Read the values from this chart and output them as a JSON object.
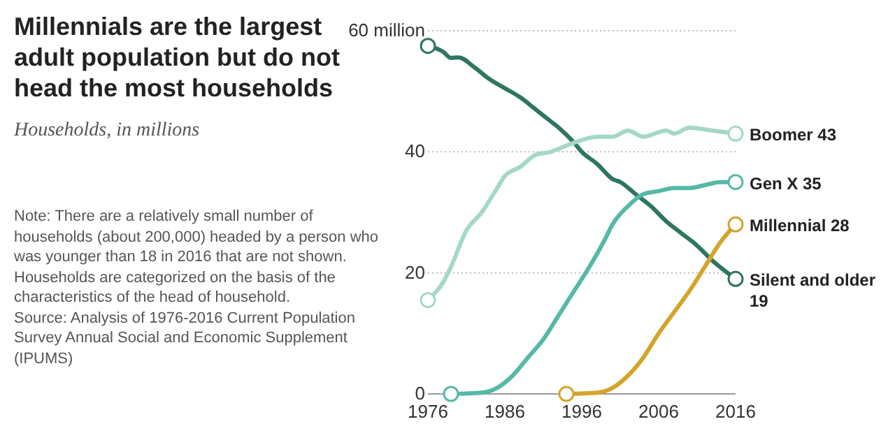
{
  "chart_data": {
    "type": "line",
    "title": "Millennials are the largest adult population but do not head the most households",
    "subtitle": "Households, in millions",
    "annotations": [
      "Note: There are a relatively small number of households (about 200,000) headed by a person who was younger than 18 in 2016 that are not shown. Households are categorized on the basis of the characteristics of the head of household.",
      "Source: Analysis of 1976-2016 Current Population Survey Annual Social and Economic Supplement (IPUMS)"
    ],
    "xlim": [
      1976,
      2016
    ],
    "xticks": [
      1976,
      1986,
      1996,
      2006,
      2016
    ],
    "ylim": [
      0,
      60
    ],
    "yticks": [
      0,
      20,
      40,
      {
        "value": 60,
        "label": "60 million"
      }
    ],
    "grid": "y",
    "legend": false,
    "line_style": "solid",
    "series": [
      {
        "name": "Silent and older",
        "color": "#2e7562",
        "x": [
          1976,
          1978,
          1979,
          1980,
          1982,
          1984,
          1986,
          1988,
          1990,
          1992,
          1993,
          1995,
          1996,
          1998,
          2000,
          2001,
          2003,
          2005,
          2007,
          2009,
          2011,
          2013,
          2016
        ],
        "values": [
          57.5,
          56.5,
          55.5,
          55.6,
          54,
          52,
          50.5,
          49,
          47,
          45,
          44,
          41.5,
          40,
          38,
          35.5,
          35,
          33,
          31,
          28.5,
          26.5,
          24.5,
          22,
          19
        ],
        "value_labels": [
          null,
          null,
          null,
          null,
          null,
          null,
          null,
          null,
          null,
          null,
          null,
          null,
          null,
          null,
          null,
          null,
          null,
          null,
          null,
          null,
          null,
          null,
          "19"
        ]
      },
      {
        "name": "Boomer",
        "color": "#a4d8c6",
        "x": [
          1976,
          1978,
          1979,
          1981,
          1983,
          1985,
          1986,
          1988,
          1990,
          1992,
          1993,
          1995,
          1998,
          2000,
          2002,
          2004,
          2007,
          2008,
          2010,
          2013,
          2016
        ],
        "values": [
          15.5,
          18.5,
          21,
          27,
          30,
          34,
          36,
          37.5,
          39.5,
          40,
          40.5,
          41.5,
          42.5,
          42.5,
          43.5,
          42.5,
          43.5,
          43,
          44,
          43.5,
          43
        ],
        "value_labels": [
          null,
          null,
          null,
          null,
          null,
          null,
          null,
          null,
          null,
          null,
          null,
          null,
          null,
          null,
          null,
          null,
          null,
          null,
          null,
          null,
          "43"
        ]
      },
      {
        "name": "Gen X",
        "color": "#55b9a6",
        "x": [
          1979,
          1983,
          1985,
          1987,
          1989,
          1991,
          1993,
          1995,
          1997,
          1999,
          2000,
          2002,
          2004,
          2006,
          2008,
          2010,
          2012,
          2014,
          2016
        ],
        "values": [
          0,
          0.2,
          1,
          3,
          6,
          9,
          13,
          17,
          21,
          25.5,
          28,
          31,
          33,
          33.5,
          34,
          34,
          34.5,
          35,
          35
        ],
        "value_labels": [
          null,
          null,
          null,
          null,
          null,
          null,
          null,
          null,
          null,
          null,
          null,
          null,
          null,
          null,
          null,
          null,
          null,
          null,
          "35"
        ]
      },
      {
        "name": "Millennial",
        "color": "#d4a52a",
        "x": [
          1994,
          1998,
          2000,
          2002,
          2004,
          2006,
          2008,
          2010,
          2012,
          2014,
          2016
        ],
        "values": [
          0,
          0.2,
          1,
          3,
          6,
          10,
          13.5,
          17,
          21,
          25,
          28
        ],
        "value_labels": [
          null,
          null,
          null,
          null,
          null,
          null,
          null,
          null,
          null,
          null,
          "28"
        ]
      }
    ]
  }
}
